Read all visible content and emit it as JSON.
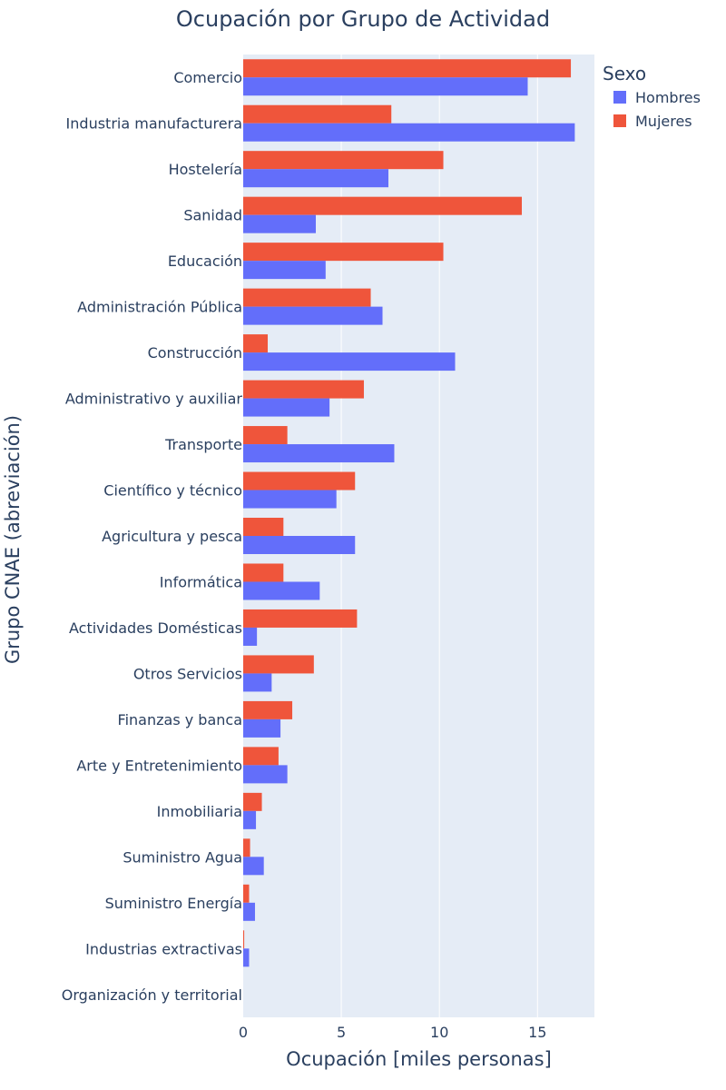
{
  "chart_data": {
    "type": "bar",
    "orientation": "horizontal",
    "title": "Ocupación por Grupo de Actividad",
    "xlabel": "Ocupación [miles personas]",
    "ylabel": "Grupo CNAE (abreviación)",
    "xlim": [
      0,
      17.9
    ],
    "x_ticks": [
      0,
      5,
      10,
      15
    ],
    "grid": true,
    "legend": {
      "title": "Sexo",
      "position": "top-right"
    },
    "categories": [
      "Comercio",
      "Industria manufacturera",
      "Hostelería",
      "Sanidad",
      "Educación",
      "Administración Pública",
      "Construcción",
      "Administrativo y auxiliar",
      "Transporte",
      "Científico y técnico",
      "Agricultura y pesca",
      "Informática",
      "Actividades Domésticas",
      "Otros Servicios",
      "Finanzas y banca",
      "Arte y Entretenimiento",
      "Inmobiliaria",
      "Suministro Agua",
      "Suministro Energía",
      "Industrias extractivas",
      "Organización y territorial"
    ],
    "series": [
      {
        "name": "Hombres",
        "color": "#636efa",
        "values": [
          14.5,
          16.9,
          7.4,
          3.7,
          4.2,
          7.1,
          10.8,
          4.4,
          7.7,
          4.75,
          5.7,
          3.9,
          0.7,
          1.45,
          1.9,
          2.25,
          0.65,
          1.05,
          0.6,
          0.3,
          0.0
        ]
      },
      {
        "name": "Mujeres",
        "color": "#ef553b",
        "values": [
          16.7,
          7.55,
          10.2,
          14.2,
          10.2,
          6.5,
          1.25,
          6.15,
          2.25,
          5.7,
          2.05,
          2.05,
          5.8,
          3.6,
          2.5,
          1.8,
          0.95,
          0.35,
          0.3,
          0.05,
          0.0
        ]
      }
    ]
  }
}
